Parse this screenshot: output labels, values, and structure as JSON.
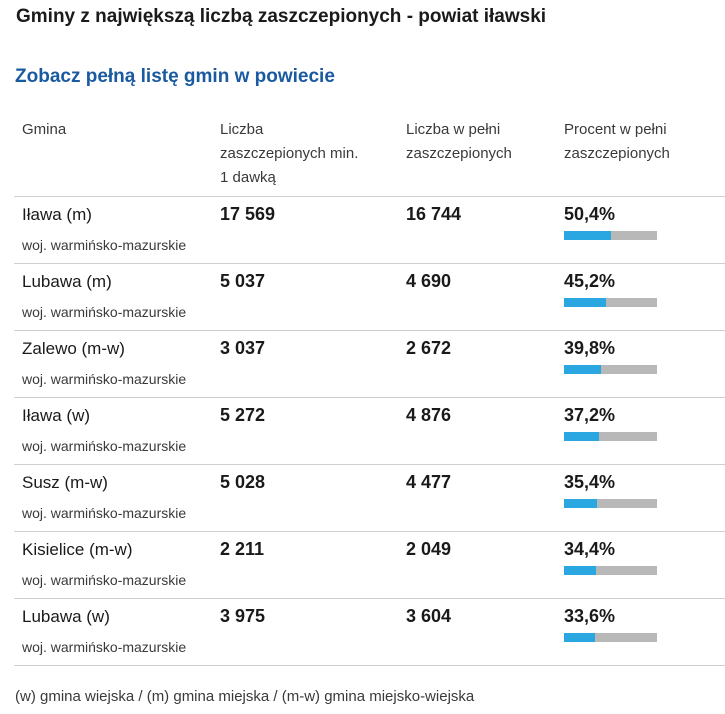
{
  "title": "Gminy z największą liczbą zaszczepionych - powiat iławski",
  "link_text": "Zobacz pełną listę gmin w powiecie",
  "table": {
    "headers": {
      "name": "Gmina",
      "min1_line1": "Liczba",
      "min1_line2": "zaszczepionych min.",
      "min1_line3": "1 dawką",
      "full_line1": "Liczba w pełni",
      "full_line2": "zaszczepionych",
      "pct_line1": "Procent w pełni",
      "pct_line2": "zaszczepionych"
    },
    "rows": [
      {
        "name": "Iława (m)",
        "region": "woj. warmińsko-mazurskie",
        "min1": "17 569",
        "full": "16 744",
        "pct_label": "50,4%",
        "pct": 50.4
      },
      {
        "name": "Lubawa (m)",
        "region": "woj. warmińsko-mazurskie",
        "min1": "5 037",
        "full": "4 690",
        "pct_label": "45,2%",
        "pct": 45.2
      },
      {
        "name": "Zalewo (m-w)",
        "region": "woj. warmińsko-mazurskie",
        "min1": "3 037",
        "full": "2 672",
        "pct_label": "39,8%",
        "pct": 39.8
      },
      {
        "name": "Iława (w)",
        "region": "woj. warmińsko-mazurskie",
        "min1": "5 272",
        "full": "4 876",
        "pct_label": "37,2%",
        "pct": 37.2
      },
      {
        "name": "Susz (m-w)",
        "region": "woj. warmińsko-mazurskie",
        "min1": "5 028",
        "full": "4 477",
        "pct_label": "35,4%",
        "pct": 35.4
      },
      {
        "name": "Kisielice (m-w)",
        "region": "woj. warmińsko-mazurskie",
        "min1": "2 211",
        "full": "2 049",
        "pct_label": "34,4%",
        "pct": 34.4
      },
      {
        "name": "Lubawa (w)",
        "region": "woj. warmińsko-mazurskie",
        "min1": "3 975",
        "full": "3 604",
        "pct_label": "33,6%",
        "pct": 33.6
      }
    ]
  },
  "footnote": "(w) gmina wiejska / (m) gmina miejska / (m-w) gmina miejsko-wiejska",
  "colors": {
    "link": "#1a5aa0",
    "bar_fill": "#2aa7e0",
    "bar_track": "#b8b8b8"
  }
}
